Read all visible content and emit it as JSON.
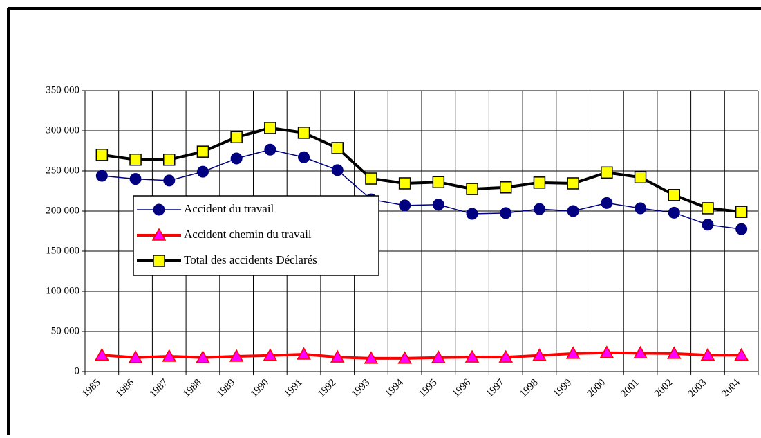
{
  "chart_data": {
    "type": "line",
    "categories": [
      "1985",
      "1986",
      "1987",
      "1988",
      "1989",
      "1990",
      "1991",
      "1992",
      "1993",
      "1994",
      "1995",
      "1996",
      "1997",
      "1998",
      "1999",
      "2000",
      "2001",
      "2002",
      "2003",
      "2004"
    ],
    "series": [
      {
        "name": "Accident du travail",
        "color": "#000080",
        "marker": "circle",
        "marker_color": "#000080",
        "values": [
          244000,
          240000,
          238000,
          249000,
          265500,
          276500,
          267000,
          251000,
          214500,
          207000,
          208000,
          196500,
          197500,
          202500,
          200000,
          210000,
          203500,
          198000,
          183000,
          177500
        ]
      },
      {
        "name": "Accident chemin du travail",
        "color": "#ff0000",
        "marker": "triangle",
        "marker_color": "#ff00ff",
        "values": [
          20500,
          17500,
          19000,
          17500,
          19000,
          20000,
          21500,
          18000,
          16500,
          16500,
          17500,
          18000,
          18000,
          20000,
          22500,
          23500,
          23000,
          22500,
          20500,
          20500
        ]
      },
      {
        "name": "Total des accidents Déclarés",
        "color": "#000000",
        "marker": "square",
        "marker_color": "#ffff00",
        "values": [
          270000,
          264000,
          264000,
          274000,
          292000,
          303500,
          297500,
          278500,
          240500,
          234500,
          236000,
          227500,
          229500,
          235500,
          234500,
          248000,
          242000,
          220000,
          203500,
          199000
        ]
      }
    ],
    "ylim": [
      0,
      350000
    ],
    "yticks": [
      {
        "value": 0,
        "label": "0"
      },
      {
        "value": 50000,
        "label": "50 000"
      },
      {
        "value": 100000,
        "label": "100 000"
      },
      {
        "value": 150000,
        "label": "150 000"
      },
      {
        "value": 200000,
        "label": "200 000"
      },
      {
        "value": 250000,
        "label": "250 000"
      },
      {
        "value": 300000,
        "label": "300 000"
      },
      {
        "value": 350000,
        "label": "350 000"
      }
    ],
    "grid": true
  }
}
